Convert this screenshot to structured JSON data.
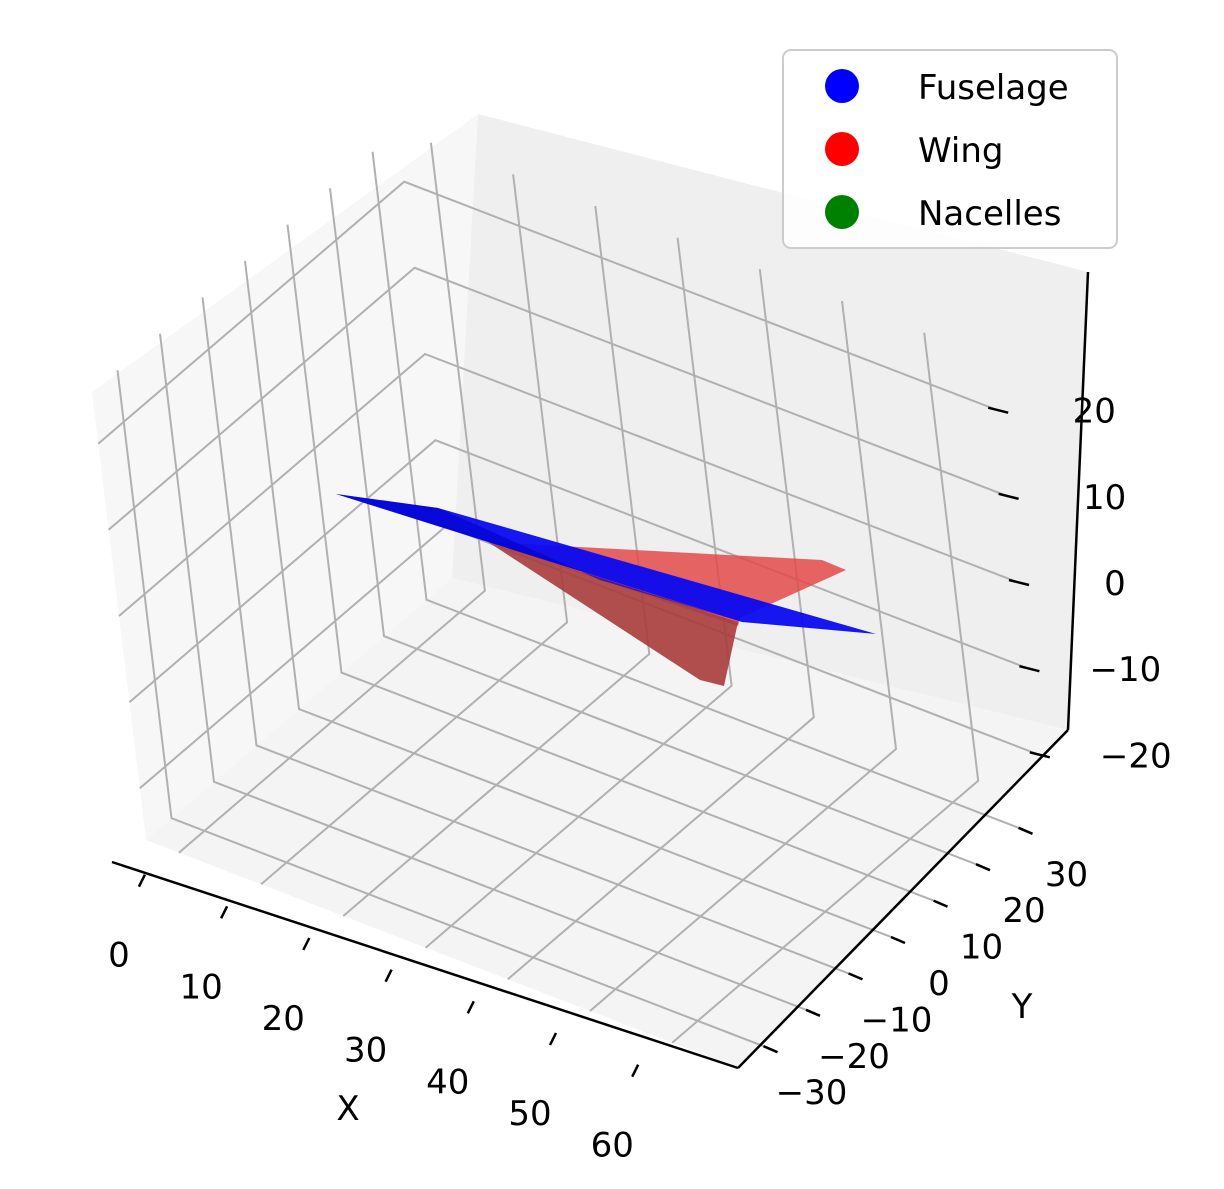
{
  "chart_data": {
    "type": "3d-surface",
    "xlabel": "X",
    "ylabel": "Y",
    "zlabel": "",
    "x_ticks": [
      "0",
      "10",
      "20",
      "30",
      "40",
      "50",
      "60"
    ],
    "y_ticks": [
      "−30",
      "−20",
      "−10",
      "0",
      "10",
      "20",
      "30"
    ],
    "z_ticks": [
      "−20",
      "−10",
      "0",
      "10",
      "20"
    ],
    "xlim": [
      -4,
      68
    ],
    "ylim": [
      -36,
      36
    ],
    "zlim": [
      -26,
      26
    ],
    "grid": true,
    "legend_position": "top-right",
    "series": [
      {
        "name": "Fuselage",
        "color": "#0000ff"
      },
      {
        "name": "Wing",
        "color": "#ff0000"
      },
      {
        "name": "Nacelles",
        "color": "#008000"
      }
    ]
  }
}
